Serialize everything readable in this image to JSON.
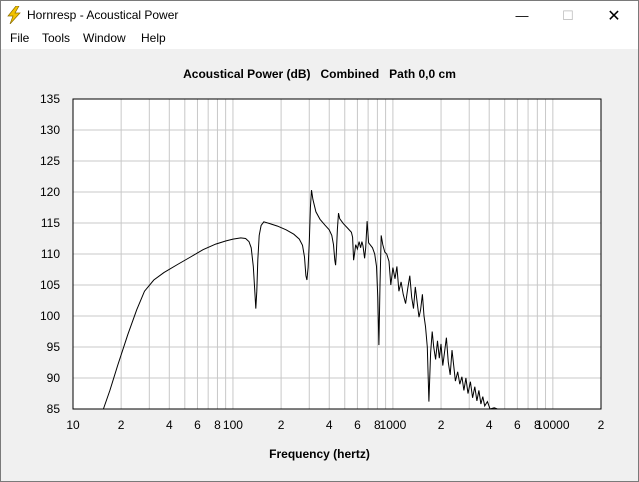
{
  "window": {
    "title": "Hornresp - Acoustical Power",
    "minimize_glyph": "—",
    "maximize_glyph": "☐",
    "close_glyph": "✕",
    "icon": "lightning-bolt-icon",
    "accent_color": "#f2c200"
  },
  "menu": {
    "items": [
      "File",
      "Tools",
      "Window",
      "Help"
    ]
  },
  "plot": {
    "title": "Acoustical Power (dB)   Combined   Path 0,0 cm",
    "xlabel": "Frequency (hertz)"
  },
  "chart_data": {
    "type": "line",
    "title": "Acoustical Power (dB)   Combined   Path 0,0 cm",
    "xlabel": "Frequency (hertz)",
    "ylabel": "",
    "xscale": "log",
    "xlim": [
      10,
      20000
    ],
    "ylim": [
      85,
      135
    ],
    "grid": true,
    "yticks": [
      135,
      130,
      125,
      120,
      115,
      110,
      105,
      100,
      95,
      90,
      85
    ],
    "xticks": [
      {
        "value": 10,
        "label": "10"
      },
      {
        "value": 20,
        "label": "2"
      },
      {
        "value": 40,
        "label": "4"
      },
      {
        "value": 60,
        "label": "6"
      },
      {
        "value": 80,
        "label": "8"
      },
      {
        "value": 100,
        "label": "100"
      },
      {
        "value": 200,
        "label": "2"
      },
      {
        "value": 400,
        "label": "4"
      },
      {
        "value": 600,
        "label": "6"
      },
      {
        "value": 800,
        "label": "8"
      },
      {
        "value": 1000,
        "label": "1000"
      },
      {
        "value": 2000,
        "label": "2"
      },
      {
        "value": 4000,
        "label": "4"
      },
      {
        "value": 6000,
        "label": "6"
      },
      {
        "value": 8000,
        "label": "8"
      },
      {
        "value": 10000,
        "label": "10000"
      },
      {
        "value": 20000,
        "label": "2"
      }
    ],
    "series": [
      {
        "color": "#000000",
        "points": [
          [
            15.5,
            85
          ],
          [
            17,
            88
          ],
          [
            19,
            92
          ],
          [
            22,
            97
          ],
          [
            25,
            101
          ],
          [
            28,
            104
          ],
          [
            32,
            105.8
          ],
          [
            37,
            107
          ],
          [
            45,
            108.3
          ],
          [
            55,
            109.6
          ],
          [
            65,
            110.7
          ],
          [
            78,
            111.6
          ],
          [
            90,
            112.1
          ],
          [
            100,
            112.4
          ],
          [
            112,
            112.6
          ],
          [
            120,
            112.5
          ],
          [
            126,
            112.0
          ],
          [
            130,
            111.0
          ],
          [
            134,
            108
          ],
          [
            137,
            104
          ],
          [
            139,
            101.2
          ],
          [
            141,
            104
          ],
          [
            143,
            109
          ],
          [
            146,
            113
          ],
          [
            150,
            114.6
          ],
          [
            156,
            115.2
          ],
          [
            170,
            114.9
          ],
          [
            190,
            114.5
          ],
          [
            215,
            113.9
          ],
          [
            240,
            113.2
          ],
          [
            260,
            112.4
          ],
          [
            272,
            111.4
          ],
          [
            280,
            109.5
          ],
          [
            286,
            106.5
          ],
          [
            290,
            105.8
          ],
          [
            295,
            107.8
          ],
          [
            300,
            112
          ],
          [
            305,
            117.5
          ],
          [
            310,
            120.3
          ],
          [
            316,
            118.8
          ],
          [
            330,
            116.8
          ],
          [
            350,
            115.6
          ],
          [
            375,
            114.7
          ],
          [
            400,
            113.9
          ],
          [
            415,
            113.0
          ],
          [
            425,
            111.5
          ],
          [
            433,
            109
          ],
          [
            438,
            108.2
          ],
          [
            443,
            110
          ],
          [
            450,
            114
          ],
          [
            457,
            116.6
          ],
          [
            465,
            115.7
          ],
          [
            490,
            114.9
          ],
          [
            520,
            114.2
          ],
          [
            550,
            113.5
          ],
          [
            560,
            112.7
          ],
          [
            568,
            109.0
          ],
          [
            575,
            110.0
          ],
          [
            585,
            111.5
          ],
          [
            600,
            110.8
          ],
          [
            615,
            112
          ],
          [
            628,
            111
          ],
          [
            640,
            112
          ],
          [
            650,
            111.3
          ],
          [
            665,
            109.3
          ],
          [
            676,
            111
          ],
          [
            690,
            115.3
          ],
          [
            705,
            111.8
          ],
          [
            720,
            111.5
          ],
          [
            745,
            111
          ],
          [
            770,
            110
          ],
          [
            790,
            108
          ],
          [
            805,
            103
          ],
          [
            818,
            95.3
          ],
          [
            830,
            105
          ],
          [
            845,
            113
          ],
          [
            865,
            111.5
          ],
          [
            890,
            110.3
          ],
          [
            915,
            110
          ],
          [
            945,
            108.8
          ],
          [
            970,
            105
          ],
          [
            1000,
            107.8
          ],
          [
            1030,
            106
          ],
          [
            1060,
            108
          ],
          [
            1090,
            104
          ],
          [
            1125,
            105.5
          ],
          [
            1160,
            103.5
          ],
          [
            1200,
            102
          ],
          [
            1240,
            104.5
          ],
          [
            1275,
            106.5
          ],
          [
            1310,
            103
          ],
          [
            1345,
            101.2
          ],
          [
            1380,
            104.7
          ],
          [
            1420,
            102
          ],
          [
            1455,
            99.8
          ],
          [
            1490,
            101
          ],
          [
            1530,
            103.5
          ],
          [
            1565,
            100
          ],
          [
            1600,
            98.3
          ],
          [
            1640,
            95.0
          ],
          [
            1680,
            86.2
          ],
          [
            1720,
            94
          ],
          [
            1760,
            97.5
          ],
          [
            1800,
            95
          ],
          [
            1850,
            93
          ],
          [
            1900,
            96
          ],
          [
            1950,
            93.2
          ],
          [
            2000,
            95.5
          ],
          [
            2050,
            92
          ],
          [
            2100,
            94
          ],
          [
            2160,
            96.5
          ],
          [
            2220,
            92.5
          ],
          [
            2280,
            90.5
          ],
          [
            2340,
            94.5
          ],
          [
            2400,
            92
          ],
          [
            2460,
            89.5
          ],
          [
            2540,
            91
          ],
          [
            2620,
            89
          ],
          [
            2700,
            90.2
          ],
          [
            2780,
            88
          ],
          [
            2860,
            90
          ],
          [
            2950,
            87.5
          ],
          [
            3050,
            89.4
          ],
          [
            3150,
            86.8
          ],
          [
            3250,
            88.6
          ],
          [
            3350,
            86.3
          ],
          [
            3450,
            88
          ],
          [
            3550,
            85.8
          ],
          [
            3650,
            87
          ],
          [
            3750,
            85.5
          ],
          [
            3900,
            86.2
          ],
          [
            4050,
            85
          ],
          [
            4300,
            85.2
          ],
          [
            4500,
            85
          ]
        ]
      }
    ]
  }
}
